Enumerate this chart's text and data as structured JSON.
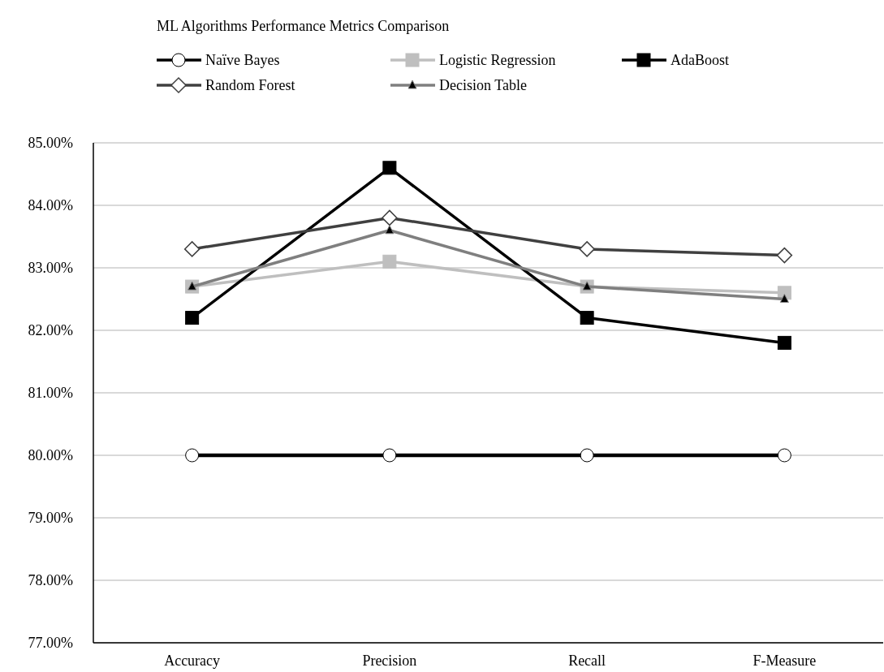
{
  "chart_data": {
    "type": "line",
    "title": "ML Algorithms Performance Metrics Comparison",
    "categories": [
      "Accuracy",
      "Precision",
      "Recall",
      "F-Measure"
    ],
    "series": [
      {
        "name": "Naïve Bayes",
        "color": "#000000",
        "marker": "circle",
        "values": [
          80.0,
          80.0,
          80.0,
          80.0
        ]
      },
      {
        "name": "Logistic Regression",
        "color": "#bfbfbf",
        "marker": "square",
        "values": [
          82.7,
          83.1,
          82.7,
          82.6
        ]
      },
      {
        "name": "AdaBoost",
        "color": "#000000",
        "marker": "square",
        "values": [
          82.2,
          84.6,
          82.2,
          81.8
        ]
      },
      {
        "name": "Random Forest",
        "color": "#404040",
        "marker": "diamond",
        "values": [
          83.3,
          83.8,
          83.3,
          83.2
        ]
      },
      {
        "name": "Decision Table",
        "color": "#7f7f7f",
        "marker": "triangle",
        "values": [
          82.7,
          83.6,
          82.7,
          82.5
        ]
      }
    ],
    "ylim": [
      77,
      85
    ],
    "yticks": [
      {
        "value": 77,
        "label": "77.00%"
      },
      {
        "value": 78,
        "label": "78.00%"
      },
      {
        "value": 79,
        "label": "79.00%"
      },
      {
        "value": 80,
        "label": "80.00%"
      },
      {
        "value": 81,
        "label": "81.00%"
      },
      {
        "value": 82,
        "label": "82.00%"
      },
      {
        "value": 83,
        "label": "83.00%"
      },
      {
        "value": 84,
        "label": "84.00%"
      },
      {
        "value": 85,
        "label": "85.00%"
      }
    ],
    "grid": "y",
    "legend": "top",
    "line_style": "solid"
  }
}
